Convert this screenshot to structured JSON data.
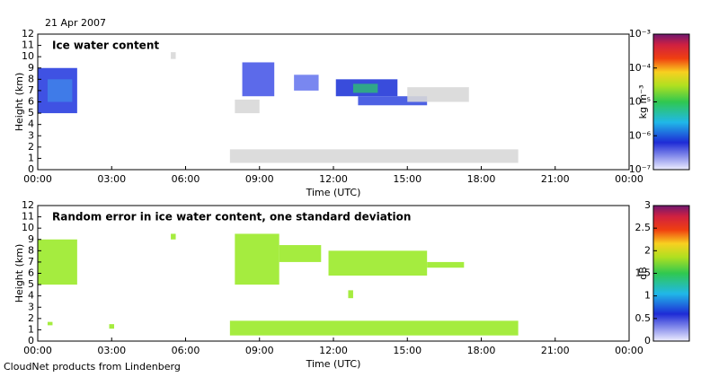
{
  "date": "21 Apr 2007",
  "footer": "CloudNet products from Lindenberg",
  "chart_data": [
    {
      "type": "heatmap",
      "title": "Ice water content",
      "xlabel": "Time (UTC)",
      "ylabel": "Height (km)",
      "xlim": [
        0,
        24
      ],
      "ylim": [
        0,
        12
      ],
      "xticks": [
        {
          "value": 0,
          "label": "00:00"
        },
        {
          "value": 3,
          "label": "03:00"
        },
        {
          "value": 6,
          "label": "06:00"
        },
        {
          "value": 9,
          "label": "09:00"
        },
        {
          "value": 12,
          "label": "12:00"
        },
        {
          "value": 15,
          "label": "15:00"
        },
        {
          "value": 18,
          "label": "18:00"
        },
        {
          "value": 21,
          "label": "21:00"
        },
        {
          "value": 24,
          "label": "00:00"
        }
      ],
      "yticks": [
        0,
        1,
        2,
        3,
        4,
        5,
        6,
        7,
        8,
        9,
        10,
        11,
        12
      ],
      "regions": [
        {
          "x": [
            0,
            1.6
          ],
          "y": [
            5,
            9
          ],
          "color": "#2a3fe0"
        },
        {
          "x": [
            0.4,
            1.4
          ],
          "y": [
            6,
            8
          ],
          "color": "#3f7fe8"
        },
        {
          "x": [
            5.4,
            5.6
          ],
          "y": [
            9.8,
            10.4
          ],
          "color": "#d8d8d8"
        },
        {
          "x": [
            8.0,
            9.0
          ],
          "y": [
            5.0,
            6.2
          ],
          "color": "#d8d8d8"
        },
        {
          "x": [
            8.3,
            9.6
          ],
          "y": [
            6.5,
            9.5
          ],
          "color": "#4a5ae8"
        },
        {
          "x": [
            10.4,
            11.4
          ],
          "y": [
            7.0,
            8.4
          ],
          "color": "#6a7aee"
        },
        {
          "x": [
            12.1,
            14.6
          ],
          "y": [
            6.5,
            8.0
          ],
          "color": "#2438d8"
        },
        {
          "x": [
            12.8,
            13.8
          ],
          "y": [
            6.8,
            7.6
          ],
          "color": "#30b080"
        },
        {
          "x": [
            13.0,
            15.8
          ],
          "y": [
            5.7,
            6.5
          ],
          "color": "#3a50e0"
        },
        {
          "x": [
            15.0,
            17.5
          ],
          "y": [
            6.0,
            7.3
          ],
          "color": "#d8d8d8"
        },
        {
          "x": [
            7.8,
            19.5
          ],
          "y": [
            0.6,
            1.8
          ],
          "color": "#d8d8d8"
        }
      ],
      "colorbar": {
        "log": true,
        "lim": [
          1e-07,
          0.001
        ],
        "label": "kg m⁻³",
        "ticks": [
          {
            "value": 1e-07,
            "label": "10⁻⁷"
          },
          {
            "value": 1e-06,
            "label": "10⁻⁶"
          },
          {
            "value": 1e-05,
            "label": "10⁻⁵"
          },
          {
            "value": 0.0001,
            "label": "10⁻⁴"
          },
          {
            "value": 0.001,
            "label": "10⁻³"
          }
        ]
      }
    },
    {
      "type": "heatmap",
      "title": "Random error in ice water content, one standard deviation",
      "xlabel": "Time (UTC)",
      "ylabel": "Height (km)",
      "xlim": [
        0,
        24
      ],
      "ylim": [
        0,
        12
      ],
      "xticks": [
        {
          "value": 0,
          "label": "00:00"
        },
        {
          "value": 3,
          "label": "03:00"
        },
        {
          "value": 6,
          "label": "06:00"
        },
        {
          "value": 9,
          "label": "09:00"
        },
        {
          "value": 12,
          "label": "12:00"
        },
        {
          "value": 15,
          "label": "15:00"
        },
        {
          "value": 18,
          "label": "18:00"
        },
        {
          "value": 21,
          "label": "21:00"
        },
        {
          "value": 24,
          "label": "00:00"
        }
      ],
      "yticks": [
        0,
        1,
        2,
        3,
        4,
        5,
        6,
        7,
        8,
        9,
        10,
        11,
        12
      ],
      "regions": [
        {
          "x": [
            0,
            1.6
          ],
          "y": [
            5,
            9
          ],
          "color": "#9bea2a"
        },
        {
          "x": [
            5.4,
            5.6
          ],
          "y": [
            9.0,
            9.5
          ],
          "color": "#9bea2a"
        },
        {
          "x": [
            8.0,
            9.8
          ],
          "y": [
            5.0,
            9.5
          ],
          "color": "#9bea2a"
        },
        {
          "x": [
            9.8,
            11.5
          ],
          "y": [
            7.0,
            8.5
          ],
          "color": "#9bea2a"
        },
        {
          "x": [
            11.8,
            15.8
          ],
          "y": [
            5.8,
            8.0
          ],
          "color": "#9bea2a"
        },
        {
          "x": [
            15.8,
            17.3
          ],
          "y": [
            6.5,
            7.0
          ],
          "color": "#9bea2a"
        },
        {
          "x": [
            7.8,
            19.5
          ],
          "y": [
            0.5,
            1.8
          ],
          "color": "#9bea2a"
        },
        {
          "x": [
            0.4,
            0.6
          ],
          "y": [
            1.4,
            1.7
          ],
          "color": "#9bea2a"
        },
        {
          "x": [
            2.9,
            3.1
          ],
          "y": [
            1.1,
            1.5
          ],
          "color": "#9bea2a"
        },
        {
          "x": [
            12.6,
            12.8
          ],
          "y": [
            3.8,
            4.5
          ],
          "color": "#9bea2a"
        }
      ],
      "colorbar": {
        "log": false,
        "lim": [
          0,
          3
        ],
        "label": "dB",
        "ticks": [
          0,
          0.5,
          1,
          1.5,
          2,
          2.5,
          3
        ]
      }
    }
  ]
}
